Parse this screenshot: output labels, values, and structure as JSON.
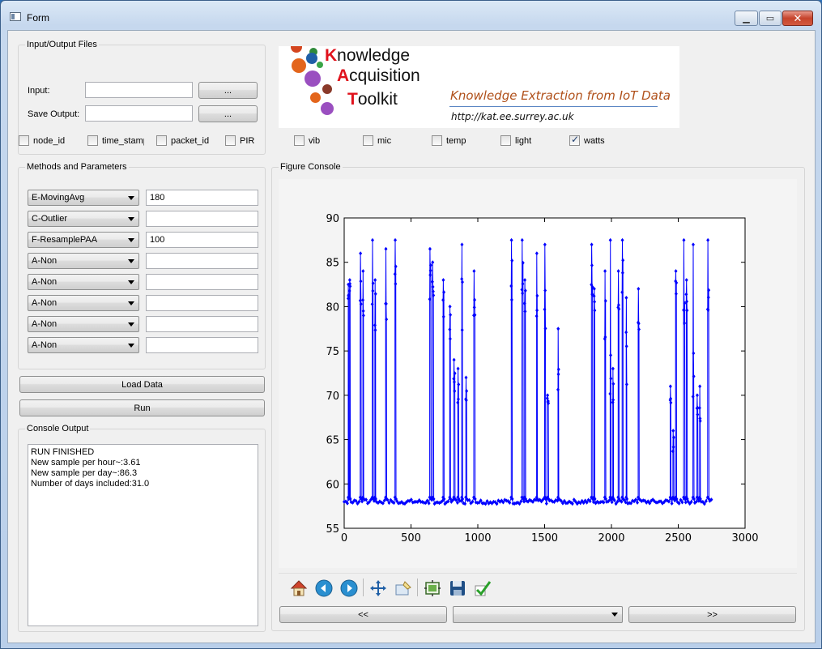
{
  "window": {
    "title": "Form"
  },
  "io_files": {
    "group_title": "Input/Output Files",
    "input_label": "Input:",
    "input_value": "",
    "input_browse": "...",
    "save_label": "Save Output:",
    "save_value": "",
    "save_browse": "..."
  },
  "columns": [
    {
      "label": "node_id",
      "checked": false
    },
    {
      "label": "time_stamp",
      "checked": false
    },
    {
      "label": "packet_id",
      "checked": false
    },
    {
      "label": "PIR",
      "checked": false
    },
    {
      "label": "vib",
      "checked": false
    },
    {
      "label": "mic",
      "checked": false
    },
    {
      "label": "temp",
      "checked": false
    },
    {
      "label": "light",
      "checked": false
    },
    {
      "label": "watts",
      "checked": true
    }
  ],
  "logo": {
    "line1_cap": "K",
    "line1_rest": "nowledge",
    "line2_cap": "A",
    "line2_rest": "cquisition",
    "line3_cap": "T",
    "line3_rest": "oolkit",
    "tagline": "Knowledge Extraction from IoT Data",
    "url": "http://kat.ee.surrey.ac.uk"
  },
  "methods": {
    "group_title": "Methods and Parameters",
    "rows": [
      {
        "method": "E-MovingAvg",
        "param": "180"
      },
      {
        "method": "C-Outlier",
        "param": ""
      },
      {
        "method": "F-ResamplePAA",
        "param": "100"
      },
      {
        "method": "A-Non",
        "param": ""
      },
      {
        "method": "A-Non",
        "param": ""
      },
      {
        "method": "A-Non",
        "param": ""
      },
      {
        "method": "A-Non",
        "param": ""
      },
      {
        "method": "A-Non",
        "param": ""
      }
    ]
  },
  "actions": {
    "load": "Load Data",
    "run": "Run"
  },
  "console": {
    "group_title": "Console Output",
    "text": "RUN FINISHED\nNew sample per hour~:3.61\nNew sample per day~:86.3\nNumber of days included:31.0"
  },
  "figure": {
    "group_title": "Figure Console"
  },
  "toolbar_icons": [
    "home-icon",
    "back-arrow-icon",
    "forward-arrow-icon",
    "pan-icon",
    "zoom-icon",
    "subplots-config-icon",
    "save-icon",
    "check-icon"
  ],
  "navigation": {
    "prev": "<<",
    "select_value": "",
    "next": ">>"
  },
  "colors": {
    "series": "#0000ff",
    "logo_red": "#e0121c",
    "tagline": "#b0501a"
  },
  "chart_data": {
    "type": "line",
    "title": "",
    "xlabel": "",
    "ylabel": "",
    "xlim": [
      0,
      3000
    ],
    "ylim": [
      55,
      90
    ],
    "xticks": [
      0,
      500,
      1000,
      1500,
      2000,
      2500,
      3000
    ],
    "yticks": [
      55,
      60,
      65,
      70,
      75,
      80,
      85,
      90
    ],
    "marker": "diamond",
    "baseline": 58,
    "x_extent": [
      0,
      2750
    ],
    "spikes": [
      {
        "x": 30,
        "w": 4,
        "peak": 82.5,
        "plateau": 81
      },
      {
        "x": 40,
        "w": 6,
        "peak": 83,
        "plateau": 82
      },
      {
        "x": 120,
        "w": 8,
        "peak": 86,
        "plateau": 81
      },
      {
        "x": 140,
        "w": 6,
        "peak": 84,
        "plateau": 80
      },
      {
        "x": 210,
        "w": 8,
        "peak": 87.5,
        "plateau": 81
      },
      {
        "x": 230,
        "w": 6,
        "peak": 83,
        "plateau": 78
      },
      {
        "x": 310,
        "w": 8,
        "peak": 86.5,
        "plateau": 80
      },
      {
        "x": 380,
        "w": 8,
        "peak": 87.5,
        "plateau": 82
      },
      {
        "x": 640,
        "w": 10,
        "peak": 86.5,
        "plateau": 81
      },
      {
        "x": 660,
        "w": 10,
        "peak": 85,
        "plateau": 80
      },
      {
        "x": 740,
        "w": 8,
        "peak": 83,
        "plateau": 79
      },
      {
        "x": 790,
        "w": 6,
        "peak": 80,
        "plateau": 77
      },
      {
        "x": 820,
        "w": 10,
        "peak": 74,
        "plateau": 71
      },
      {
        "x": 850,
        "w": 8,
        "peak": 73,
        "plateau": 70
      },
      {
        "x": 880,
        "w": 6,
        "peak": 87,
        "plateau": 78
      },
      {
        "x": 910,
        "w": 8,
        "peak": 72,
        "plateau": 70
      },
      {
        "x": 970,
        "w": 10,
        "peak": 84,
        "plateau": 80
      },
      {
        "x": 1250,
        "w": 8,
        "peak": 87.5,
        "plateau": 82
      },
      {
        "x": 1330,
        "w": 10,
        "peak": 87.5,
        "plateau": 81
      },
      {
        "x": 1350,
        "w": 8,
        "peak": 83,
        "plateau": 80
      },
      {
        "x": 1440,
        "w": 6,
        "peak": 86,
        "plateau": 78
      },
      {
        "x": 1500,
        "w": 8,
        "peak": 87,
        "plateau": 76
      },
      {
        "x": 1520,
        "w": 10,
        "peak": 70,
        "plateau": 69
      },
      {
        "x": 1600,
        "w": 6,
        "peak": 77.5,
        "plateau": 72
      },
      {
        "x": 1850,
        "w": 10,
        "peak": 87,
        "plateau": 82
      },
      {
        "x": 1870,
        "w": 6,
        "peak": 82,
        "plateau": 80
      },
      {
        "x": 1950,
        "w": 8,
        "peak": 84,
        "plateau": 78
      },
      {
        "x": 1990,
        "w": 8,
        "peak": 87.5,
        "plateau": 73
      },
      {
        "x": 2010,
        "w": 6,
        "peak": 73,
        "plateau": 70
      },
      {
        "x": 2050,
        "w": 8,
        "peak": 84,
        "plateau": 80
      },
      {
        "x": 2080,
        "w": 8,
        "peak": 87.5,
        "plateau": 82
      },
      {
        "x": 2110,
        "w": 6,
        "peak": 81,
        "plateau": 70
      },
      {
        "x": 2200,
        "w": 8,
        "peak": 82,
        "plateau": 78
      },
      {
        "x": 2440,
        "w": 6,
        "peak": 71,
        "plateau": 69
      },
      {
        "x": 2460,
        "w": 8,
        "peak": 66,
        "plateau": 64
      },
      {
        "x": 2480,
        "w": 8,
        "peak": 84,
        "plateau": 81
      },
      {
        "x": 2540,
        "w": 10,
        "peak": 87.5,
        "plateau": 80
      },
      {
        "x": 2560,
        "w": 8,
        "peak": 83,
        "plateau": 78
      },
      {
        "x": 2610,
        "w": 8,
        "peak": 87,
        "plateau": 72
      },
      {
        "x": 2640,
        "w": 8,
        "peak": 70,
        "plateau": 68
      },
      {
        "x": 2660,
        "w": 6,
        "peak": 71,
        "plateau": 68
      },
      {
        "x": 2720,
        "w": 10,
        "peak": 87.5,
        "plateau": 81
      }
    ]
  }
}
